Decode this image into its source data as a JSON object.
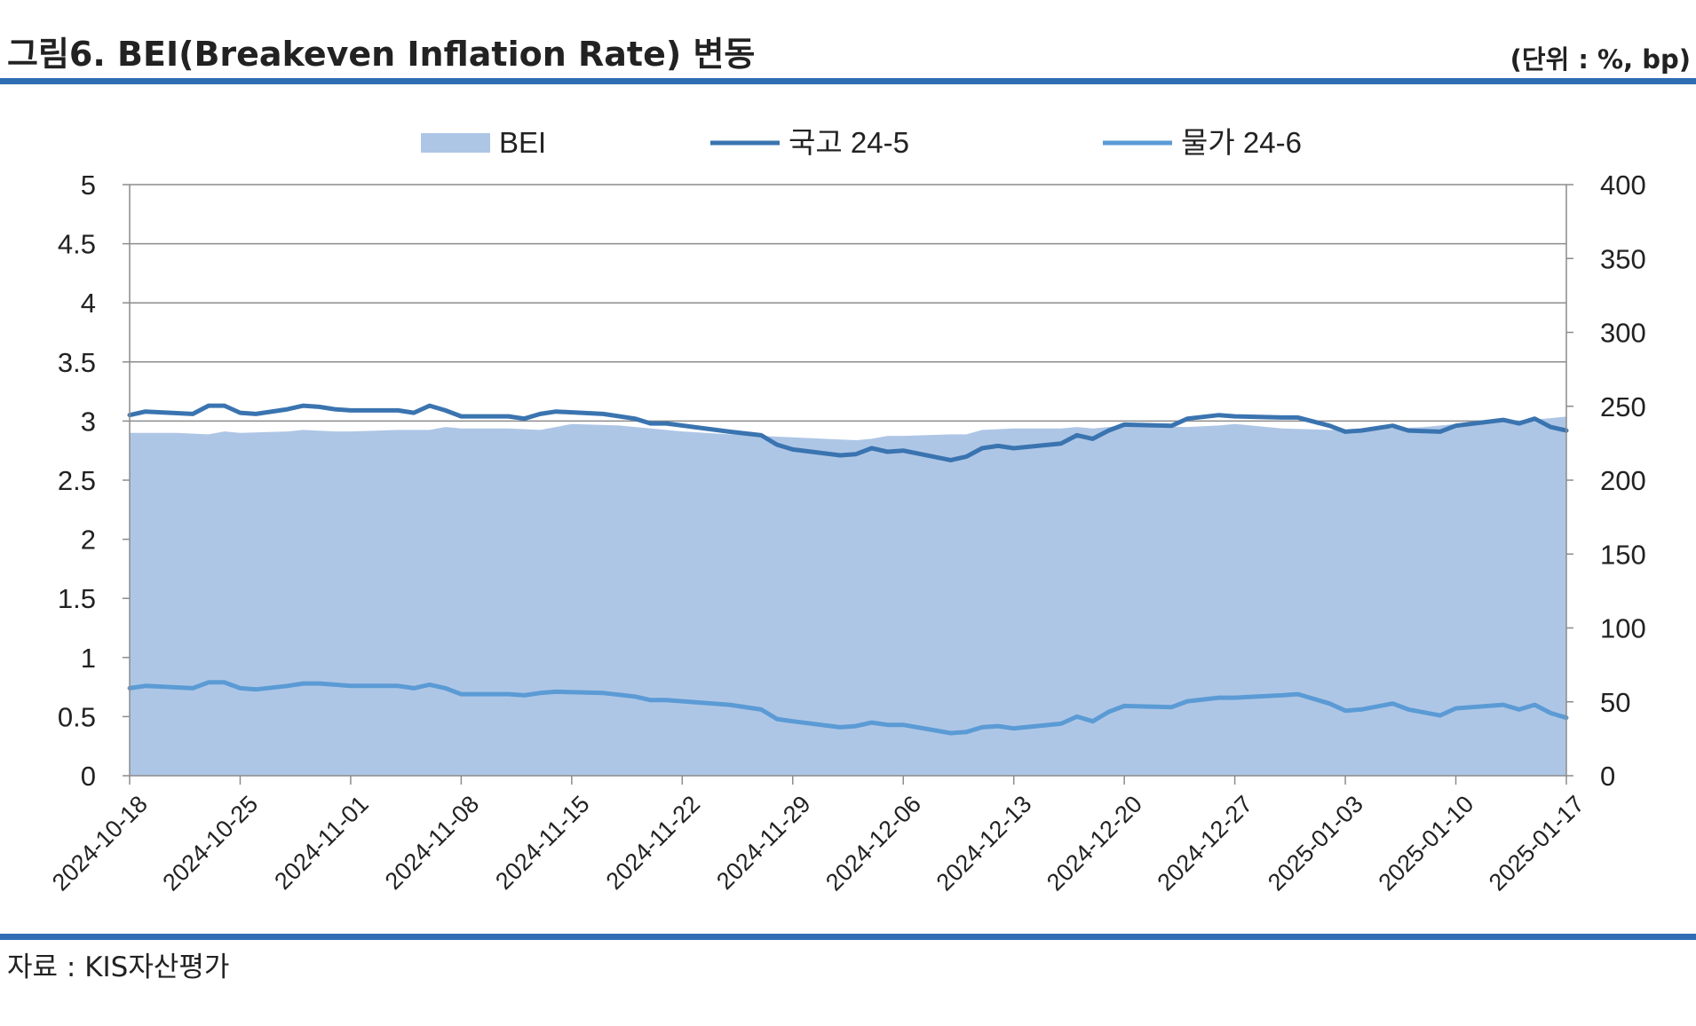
{
  "header": {
    "title": "그림6. BEI(Breakeven Inflation Rate) 변동",
    "unit": "(단위 : %, bp)"
  },
  "footer": {
    "source": "자료 : KIS자산평가"
  },
  "colors": {
    "rule": "#2E6DB4",
    "bei_area": "#AEC6E6",
    "ktb_line": "#3A74B0",
    "ilb_line": "#5B9BD5",
    "grid": "#8C8C8C"
  },
  "chart_data": {
    "type": "line",
    "legend_position": "top",
    "grid": true,
    "x_tick_labels": [
      "2024-10-18",
      "2024-10-25",
      "2024-11-01",
      "2024-11-08",
      "2024-11-15",
      "2024-11-22",
      "2024-11-29",
      "2024-12-06",
      "2024-12-13",
      "2024-12-20",
      "2024-12-27",
      "2025-01-03",
      "2025-01-10",
      "2025-01-17"
    ],
    "y_left": {
      "min": 0,
      "max": 5,
      "step": 0.5,
      "ticks": [
        "0",
        "0.5",
        "1",
        "1.5",
        "2",
        "2.5",
        "3",
        "3.5",
        "4",
        "4.5",
        "5"
      ]
    },
    "y_right": {
      "min": 0,
      "max": 400,
      "step": 50,
      "ticks": [
        "0",
        "50",
        "100",
        "150",
        "200",
        "250",
        "300",
        "350",
        "400"
      ]
    },
    "x_range": [
      "2024-10-18",
      "2025-01-17"
    ],
    "series": [
      {
        "name": "BEI",
        "kind": "area",
        "axis": "right",
        "points": [
          [
            "2024-10-18",
            232
          ],
          [
            "2024-10-21",
            232
          ],
          [
            "2024-10-23",
            231
          ],
          [
            "2024-10-24",
            233
          ],
          [
            "2024-10-25",
            232
          ],
          [
            "2024-10-28",
            233
          ],
          [
            "2024-10-29",
            234
          ],
          [
            "2024-10-31",
            233
          ],
          [
            "2024-11-01",
            233
          ],
          [
            "2024-11-04",
            234
          ],
          [
            "2024-11-06",
            234
          ],
          [
            "2024-11-07",
            236
          ],
          [
            "2024-11-08",
            235
          ],
          [
            "2024-11-11",
            235
          ],
          [
            "2024-11-13",
            234
          ],
          [
            "2024-11-14",
            236
          ],
          [
            "2024-11-15",
            238
          ],
          [
            "2024-11-18",
            237
          ],
          [
            "2024-11-20",
            235
          ],
          [
            "2024-11-22",
            233
          ],
          [
            "2024-11-25",
            231
          ],
          [
            "2024-11-27",
            230
          ],
          [
            "2024-11-29",
            229
          ],
          [
            "2024-12-03",
            227
          ],
          [
            "2024-12-04",
            228
          ],
          [
            "2024-12-05",
            230
          ],
          [
            "2024-12-06",
            230
          ],
          [
            "2024-12-09",
            231
          ],
          [
            "2024-12-10",
            231
          ],
          [
            "2024-12-11",
            234
          ],
          [
            "2024-12-13",
            235
          ],
          [
            "2024-12-16",
            235
          ],
          [
            "2024-12-17",
            236
          ],
          [
            "2024-12-18",
            235
          ],
          [
            "2024-12-19",
            236
          ],
          [
            "2024-12-20",
            237
          ],
          [
            "2024-12-24",
            236
          ],
          [
            "2024-12-26",
            237
          ],
          [
            "2024-12-27",
            238
          ],
          [
            "2024-12-30",
            235
          ],
          [
            "2025-01-02",
            234
          ],
          [
            "2025-01-03",
            234
          ],
          [
            "2025-01-06",
            235
          ],
          [
            "2025-01-08",
            236
          ],
          [
            "2025-01-10",
            238
          ],
          [
            "2025-01-13",
            240
          ],
          [
            "2025-01-15",
            241
          ],
          [
            "2025-01-16",
            242
          ],
          [
            "2025-01-17",
            243
          ]
        ]
      },
      {
        "name": "국고 24-5",
        "kind": "line",
        "axis": "left",
        "points": [
          [
            "2024-10-18",
            3.05
          ],
          [
            "2024-10-19",
            3.08
          ],
          [
            "2024-10-22",
            3.06
          ],
          [
            "2024-10-23",
            3.13
          ],
          [
            "2024-10-24",
            3.13
          ],
          [
            "2024-10-25",
            3.07
          ],
          [
            "2024-10-26",
            3.06
          ],
          [
            "2024-10-28",
            3.1
          ],
          [
            "2024-10-29",
            3.13
          ],
          [
            "2024-10-30",
            3.12
          ],
          [
            "2024-10-31",
            3.1
          ],
          [
            "2024-11-01",
            3.09
          ],
          [
            "2024-11-04",
            3.09
          ],
          [
            "2024-11-05",
            3.07
          ],
          [
            "2024-11-06",
            3.13
          ],
          [
            "2024-11-07",
            3.09
          ],
          [
            "2024-11-08",
            3.04
          ],
          [
            "2024-11-11",
            3.04
          ],
          [
            "2024-11-12",
            3.02
          ],
          [
            "2024-11-13",
            3.06
          ],
          [
            "2024-11-14",
            3.08
          ],
          [
            "2024-11-17",
            3.06
          ],
          [
            "2024-11-19",
            3.02
          ],
          [
            "2024-11-20",
            2.98
          ],
          [
            "2024-11-21",
            2.98
          ],
          [
            "2024-11-25",
            2.91
          ],
          [
            "2024-11-27",
            2.88
          ],
          [
            "2024-11-28",
            2.8
          ],
          [
            "2024-11-29",
            2.76
          ],
          [
            "2024-12-02",
            2.71
          ],
          [
            "2024-12-03",
            2.72
          ],
          [
            "2024-12-04",
            2.77
          ],
          [
            "2024-12-05",
            2.74
          ],
          [
            "2024-12-06",
            2.75
          ],
          [
            "2024-12-09",
            2.67
          ],
          [
            "2024-12-10",
            2.7
          ],
          [
            "2024-12-11",
            2.77
          ],
          [
            "2024-12-12",
            2.79
          ],
          [
            "2024-12-13",
            2.77
          ],
          [
            "2024-12-16",
            2.81
          ],
          [
            "2024-12-17",
            2.88
          ],
          [
            "2024-12-18",
            2.85
          ],
          [
            "2024-12-19",
            2.92
          ],
          [
            "2024-12-20",
            2.97
          ],
          [
            "2024-12-23",
            2.96
          ],
          [
            "2024-12-24",
            3.02
          ],
          [
            "2024-12-26",
            3.05
          ],
          [
            "2024-12-27",
            3.04
          ],
          [
            "2024-12-30",
            3.03
          ],
          [
            "2024-12-31",
            3.03
          ],
          [
            "2025-01-02",
            2.96
          ],
          [
            "2025-01-03",
            2.91
          ],
          [
            "2025-01-04",
            2.92
          ],
          [
            "2025-01-06",
            2.96
          ],
          [
            "2025-01-07",
            2.92
          ],
          [
            "2025-01-09",
            2.91
          ],
          [
            "2025-01-10",
            2.96
          ],
          [
            "2025-01-13",
            3.01
          ],
          [
            "2025-01-14",
            2.98
          ],
          [
            "2025-01-15",
            3.02
          ],
          [
            "2025-01-16",
            2.95
          ],
          [
            "2025-01-17",
            2.92
          ]
        ]
      },
      {
        "name": "물가 24-6",
        "kind": "line",
        "axis": "left",
        "points": [
          [
            "2024-10-18",
            0.74
          ],
          [
            "2024-10-19",
            0.76
          ],
          [
            "2024-10-22",
            0.74
          ],
          [
            "2024-10-23",
            0.79
          ],
          [
            "2024-10-24",
            0.79
          ],
          [
            "2024-10-25",
            0.74
          ],
          [
            "2024-10-26",
            0.73
          ],
          [
            "2024-10-28",
            0.76
          ],
          [
            "2024-10-29",
            0.78
          ],
          [
            "2024-10-30",
            0.78
          ],
          [
            "2024-10-31",
            0.77
          ],
          [
            "2024-11-01",
            0.76
          ],
          [
            "2024-11-04",
            0.76
          ],
          [
            "2024-11-05",
            0.74
          ],
          [
            "2024-11-06",
            0.77
          ],
          [
            "2024-11-07",
            0.74
          ],
          [
            "2024-11-08",
            0.69
          ],
          [
            "2024-11-11",
            0.69
          ],
          [
            "2024-11-12",
            0.68
          ],
          [
            "2024-11-13",
            0.7
          ],
          [
            "2024-11-14",
            0.71
          ],
          [
            "2024-11-17",
            0.7
          ],
          [
            "2024-11-19",
            0.67
          ],
          [
            "2024-11-20",
            0.64
          ],
          [
            "2024-11-21",
            0.64
          ],
          [
            "2024-11-25",
            0.6
          ],
          [
            "2024-11-27",
            0.56
          ],
          [
            "2024-11-28",
            0.48
          ],
          [
            "2024-11-29",
            0.46
          ],
          [
            "2024-12-02",
            0.41
          ],
          [
            "2024-12-03",
            0.42
          ],
          [
            "2024-12-04",
            0.45
          ],
          [
            "2024-12-05",
            0.43
          ],
          [
            "2024-12-06",
            0.43
          ],
          [
            "2024-12-09",
            0.36
          ],
          [
            "2024-12-10",
            0.37
          ],
          [
            "2024-12-11",
            0.41
          ],
          [
            "2024-12-12",
            0.42
          ],
          [
            "2024-12-13",
            0.4
          ],
          [
            "2024-12-16",
            0.44
          ],
          [
            "2024-12-17",
            0.5
          ],
          [
            "2024-12-18",
            0.46
          ],
          [
            "2024-12-19",
            0.54
          ],
          [
            "2024-12-20",
            0.59
          ],
          [
            "2024-12-23",
            0.58
          ],
          [
            "2024-12-24",
            0.63
          ],
          [
            "2024-12-26",
            0.66
          ],
          [
            "2024-12-27",
            0.66
          ],
          [
            "2024-12-30",
            0.68
          ],
          [
            "2024-12-31",
            0.69
          ],
          [
            "2025-01-02",
            0.61
          ],
          [
            "2025-01-03",
            0.55
          ],
          [
            "2025-01-04",
            0.56
          ],
          [
            "2025-01-06",
            0.61
          ],
          [
            "2025-01-07",
            0.56
          ],
          [
            "2025-01-09",
            0.51
          ],
          [
            "2025-01-10",
            0.57
          ],
          [
            "2025-01-13",
            0.6
          ],
          [
            "2025-01-14",
            0.56
          ],
          [
            "2025-01-15",
            0.6
          ],
          [
            "2025-01-16",
            0.53
          ],
          [
            "2025-01-17",
            0.49
          ]
        ]
      }
    ]
  }
}
